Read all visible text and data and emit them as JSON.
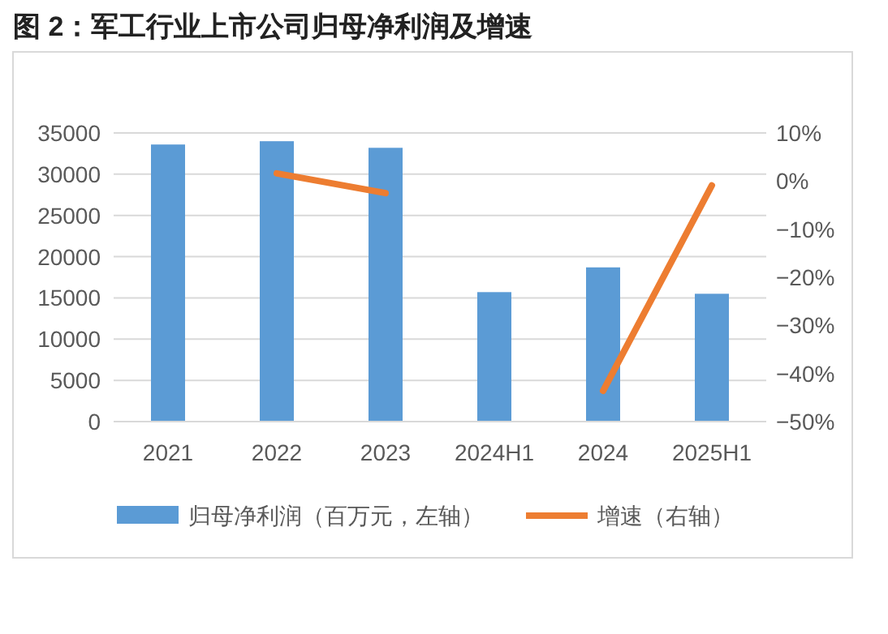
{
  "chart_data": {
    "type": "bar",
    "title": "图 2：军工行业上市公司归母净利润及增速",
    "categories": [
      "2021",
      "2022",
      "2023",
      "2024H1",
      "2024",
      "2025H1"
    ],
    "series": [
      {
        "name": "归母净利润（百万元，左轴）",
        "color": "#5b9bd5",
        "values": [
          33600,
          34000,
          33200,
          15700,
          18700,
          15500
        ]
      },
      {
        "name": "增速（右轴）",
        "type": "line",
        "axis": "y2",
        "color": "#ed7d31",
        "values": [
          null,
          1.6,
          -2.5,
          null,
          -43.6,
          -0.9
        ]
      }
    ],
    "ylim": [
      0,
      35000
    ],
    "yticks": [
      0,
      5000,
      10000,
      15000,
      20000,
      25000,
      30000,
      35000
    ],
    "y2lim": [
      -50,
      10
    ],
    "y2ticks": [
      {
        "value": 10,
        "label": "10%"
      },
      {
        "value": 0,
        "label": "0%"
      },
      {
        "value": -10,
        "label": "−10%"
      },
      {
        "value": -20,
        "label": "−20%"
      },
      {
        "value": -30,
        "label": "−30%"
      },
      {
        "value": -40,
        "label": "−40%"
      },
      {
        "value": -50,
        "label": "−50%"
      }
    ],
    "grid": "y",
    "legend": "bottom"
  }
}
